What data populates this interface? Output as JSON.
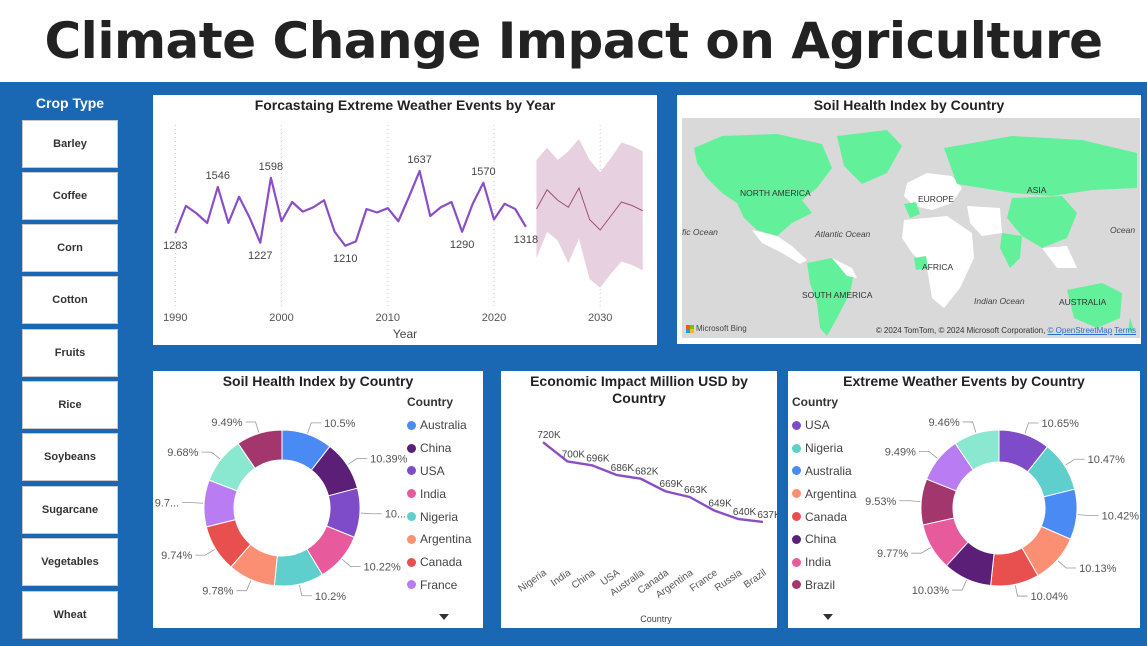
{
  "title": "Climate Change Impact on Agriculture",
  "slicer": {
    "title": "Crop Type",
    "items": [
      "Barley",
      "Coffee",
      "Corn",
      "Cotton",
      "Fruits",
      "Rice",
      "Soybeans",
      "Sugarcane",
      "Vegetables",
      "Wheat"
    ]
  },
  "colors": {
    "background": "#1a67b4",
    "line": "#8a4fc4",
    "forecast_band": "#e7d0df",
    "forecast_line": "#a04f7c",
    "land": "#63f09a",
    "water": "#d9d9d9"
  },
  "forecast": {
    "title": "Forcastaing Extreme Weather Events by Year",
    "xlabel": "Year"
  },
  "map": {
    "title": "Soil Health Index by Country",
    "labels": [
      "NORTH AMERICA",
      "EUROPE",
      "ASIA",
      "AFRICA",
      "SOUTH AMERICA",
      "AUSTRALIA",
      "Atlantic Ocean",
      "Indian Ocean",
      "fic Ocean",
      "Ocean"
    ],
    "provider": "Microsoft Bing",
    "attribution": "© 2024 TomTom, © 2024 Microsoft Corporation,",
    "osm": "© OpenStreetMap",
    "terms": "Terms"
  },
  "soil_donut": {
    "title": "Soil Health Index by Country",
    "legend_title": "Country"
  },
  "econ": {
    "title": "Economic Impact Million USD by Country",
    "xlabel": "Country"
  },
  "weather_donut": {
    "title": "Extreme Weather Events by Country",
    "legend_title": "Country"
  },
  "chart_data": [
    {
      "type": "line",
      "title": "Forcastaing Extreme Weather Events by Year",
      "xlabel": "Year",
      "ylabel": "",
      "x_ticks": [
        1990,
        2000,
        2010,
        2020,
        2030
      ],
      "actual": {
        "x": [
          1990,
          1991,
          1992,
          1993,
          1994,
          1995,
          1996,
          1997,
          1998,
          1999,
          2000,
          2001,
          2002,
          2003,
          2004,
          2005,
          2006,
          2007,
          2008,
          2009,
          2010,
          2011,
          2012,
          2013,
          2014,
          2015,
          2016,
          2017,
          2018,
          2019,
          2020,
          2021,
          2022,
          2023
        ],
        "y": [
          1283,
          1438,
          1395,
          1340,
          1546,
          1340,
          1490,
          1370,
          1227,
          1598,
          1350,
          1460,
          1405,
          1430,
          1470,
          1290,
          1210,
          1235,
          1420,
          1400,
          1425,
          1350,
          1490,
          1637,
          1380,
          1430,
          1460,
          1290,
          1450,
          1570,
          1360,
          1450,
          1420,
          1318
        ]
      },
      "forecast": {
        "x": [
          2024,
          2025,
          2026,
          2027,
          2028,
          2029,
          2030,
          2031,
          2032,
          2033,
          2034
        ],
        "y": [
          1420,
          1530,
          1470,
          1430,
          1540,
          1360,
          1300,
          1380,
          1460,
          1440,
          1410
        ],
        "upper": [
          1700,
          1770,
          1700,
          1750,
          1820,
          1700,
          1630,
          1710,
          1800,
          1780,
          1750
        ],
        "lower": [
          1140,
          1290,
          1240,
          1110,
          1250,
          1020,
          970,
          1050,
          1120,
          1100,
          1070
        ]
      },
      "data_labels": [
        {
          "x": 1990,
          "y": 1283,
          "text": "1283",
          "pos": "below"
        },
        {
          "x": 1994,
          "y": 1546,
          "text": "1546",
          "pos": "above"
        },
        {
          "x": 1998,
          "y": 1227,
          "text": "1227",
          "pos": "below"
        },
        {
          "x": 1999,
          "y": 1598,
          "text": "1598",
          "pos": "above"
        },
        {
          "x": 2006,
          "y": 1210,
          "text": "1210",
          "pos": "below"
        },
        {
          "x": 2013,
          "y": 1637,
          "text": "1637",
          "pos": "above"
        },
        {
          "x": 2017,
          "y": 1290,
          "text": "1290",
          "pos": "below"
        },
        {
          "x": 2019,
          "y": 1570,
          "text": "1570",
          "pos": "above"
        },
        {
          "x": 2023,
          "y": 1318,
          "text": "1318",
          "pos": "below"
        }
      ],
      "ylim": [
        900,
        1900
      ]
    },
    {
      "type": "pie",
      "title": "Soil Health Index by Country",
      "legend_title": "Country",
      "legend_placement": "right",
      "slices": [
        {
          "name": "Australia",
          "value": 10.5,
          "label": "10.5%",
          "color": "#4a8af4"
        },
        {
          "name": "China",
          "value": 10.39,
          "label": "10.39%",
          "color": "#5c1f78"
        },
        {
          "name": "USA",
          "value": 10.2,
          "label": "10...",
          "color": "#7e4cc9"
        },
        {
          "name": "India",
          "value": 10.22,
          "label": "10.22%",
          "color": "#e75b9c"
        },
        {
          "name": "Nigeria",
          "value": 10.2,
          "label": "10.2%",
          "color": "#5ecfcc"
        },
        {
          "name": "Argentina",
          "value": 9.78,
          "label": "9.78%",
          "color": "#fb8f74"
        },
        {
          "name": "Canada",
          "value": 9.74,
          "label": "9.74%",
          "color": "#e8504f"
        },
        {
          "name": "France",
          "value": 9.7,
          "label": "9.7...",
          "color": "#b97cf2"
        },
        {
          "name": "",
          "value": 9.68,
          "label": "9.68%",
          "color": "#8ae8d0"
        },
        {
          "name": "",
          "value": 9.49,
          "label": "9.49%",
          "color": "#a3366d"
        }
      ]
    },
    {
      "type": "line",
      "title": "Economic Impact Million USD by Country",
      "xlabel": "Country",
      "categories": [
        "Nigeria",
        "India",
        "China",
        "USA",
        "Australia",
        "Canada",
        "Argentina",
        "France",
        "Russia",
        "Brazil"
      ],
      "values": [
        720,
        700,
        696,
        686,
        682,
        669,
        663,
        649,
        640,
        637
      ],
      "labels": [
        "720K",
        "700K",
        "696K",
        "686K",
        "682K",
        "669K",
        "663K",
        "649K",
        "640K",
        "637K"
      ],
      "ylim": [
        560,
        740
      ]
    },
    {
      "type": "pie",
      "title": "Extreme Weather Events by Country",
      "legend_title": "Country",
      "legend_placement": "left",
      "slices": [
        {
          "name": "USA",
          "value": 10.65,
          "label": "10.65%",
          "color": "#7e4cc9"
        },
        {
          "name": "Nigeria",
          "value": 10.47,
          "label": "10.47%",
          "color": "#5ecfcc"
        },
        {
          "name": "Australia",
          "value": 10.42,
          "label": "10.42%",
          "color": "#4a8af4"
        },
        {
          "name": "Argentina",
          "value": 10.13,
          "label": "10.13%",
          "color": "#fb8f74"
        },
        {
          "name": "Canada",
          "value": 10.04,
          "label": "10.04%",
          "color": "#e8504f"
        },
        {
          "name": "China",
          "value": 10.03,
          "label": "10.03%",
          "color": "#5c1f78"
        },
        {
          "name": "India",
          "value": 9.77,
          "label": "9.77%",
          "color": "#e75b9c"
        },
        {
          "name": "Brazil",
          "value": 9.53,
          "label": "9.53%",
          "color": "#a3366d"
        },
        {
          "name": "",
          "value": 9.49,
          "label": "9.49%",
          "color": "#b97cf2"
        },
        {
          "name": "",
          "value": 9.46,
          "label": "9.46%",
          "color": "#8ae8d0"
        }
      ]
    }
  ]
}
